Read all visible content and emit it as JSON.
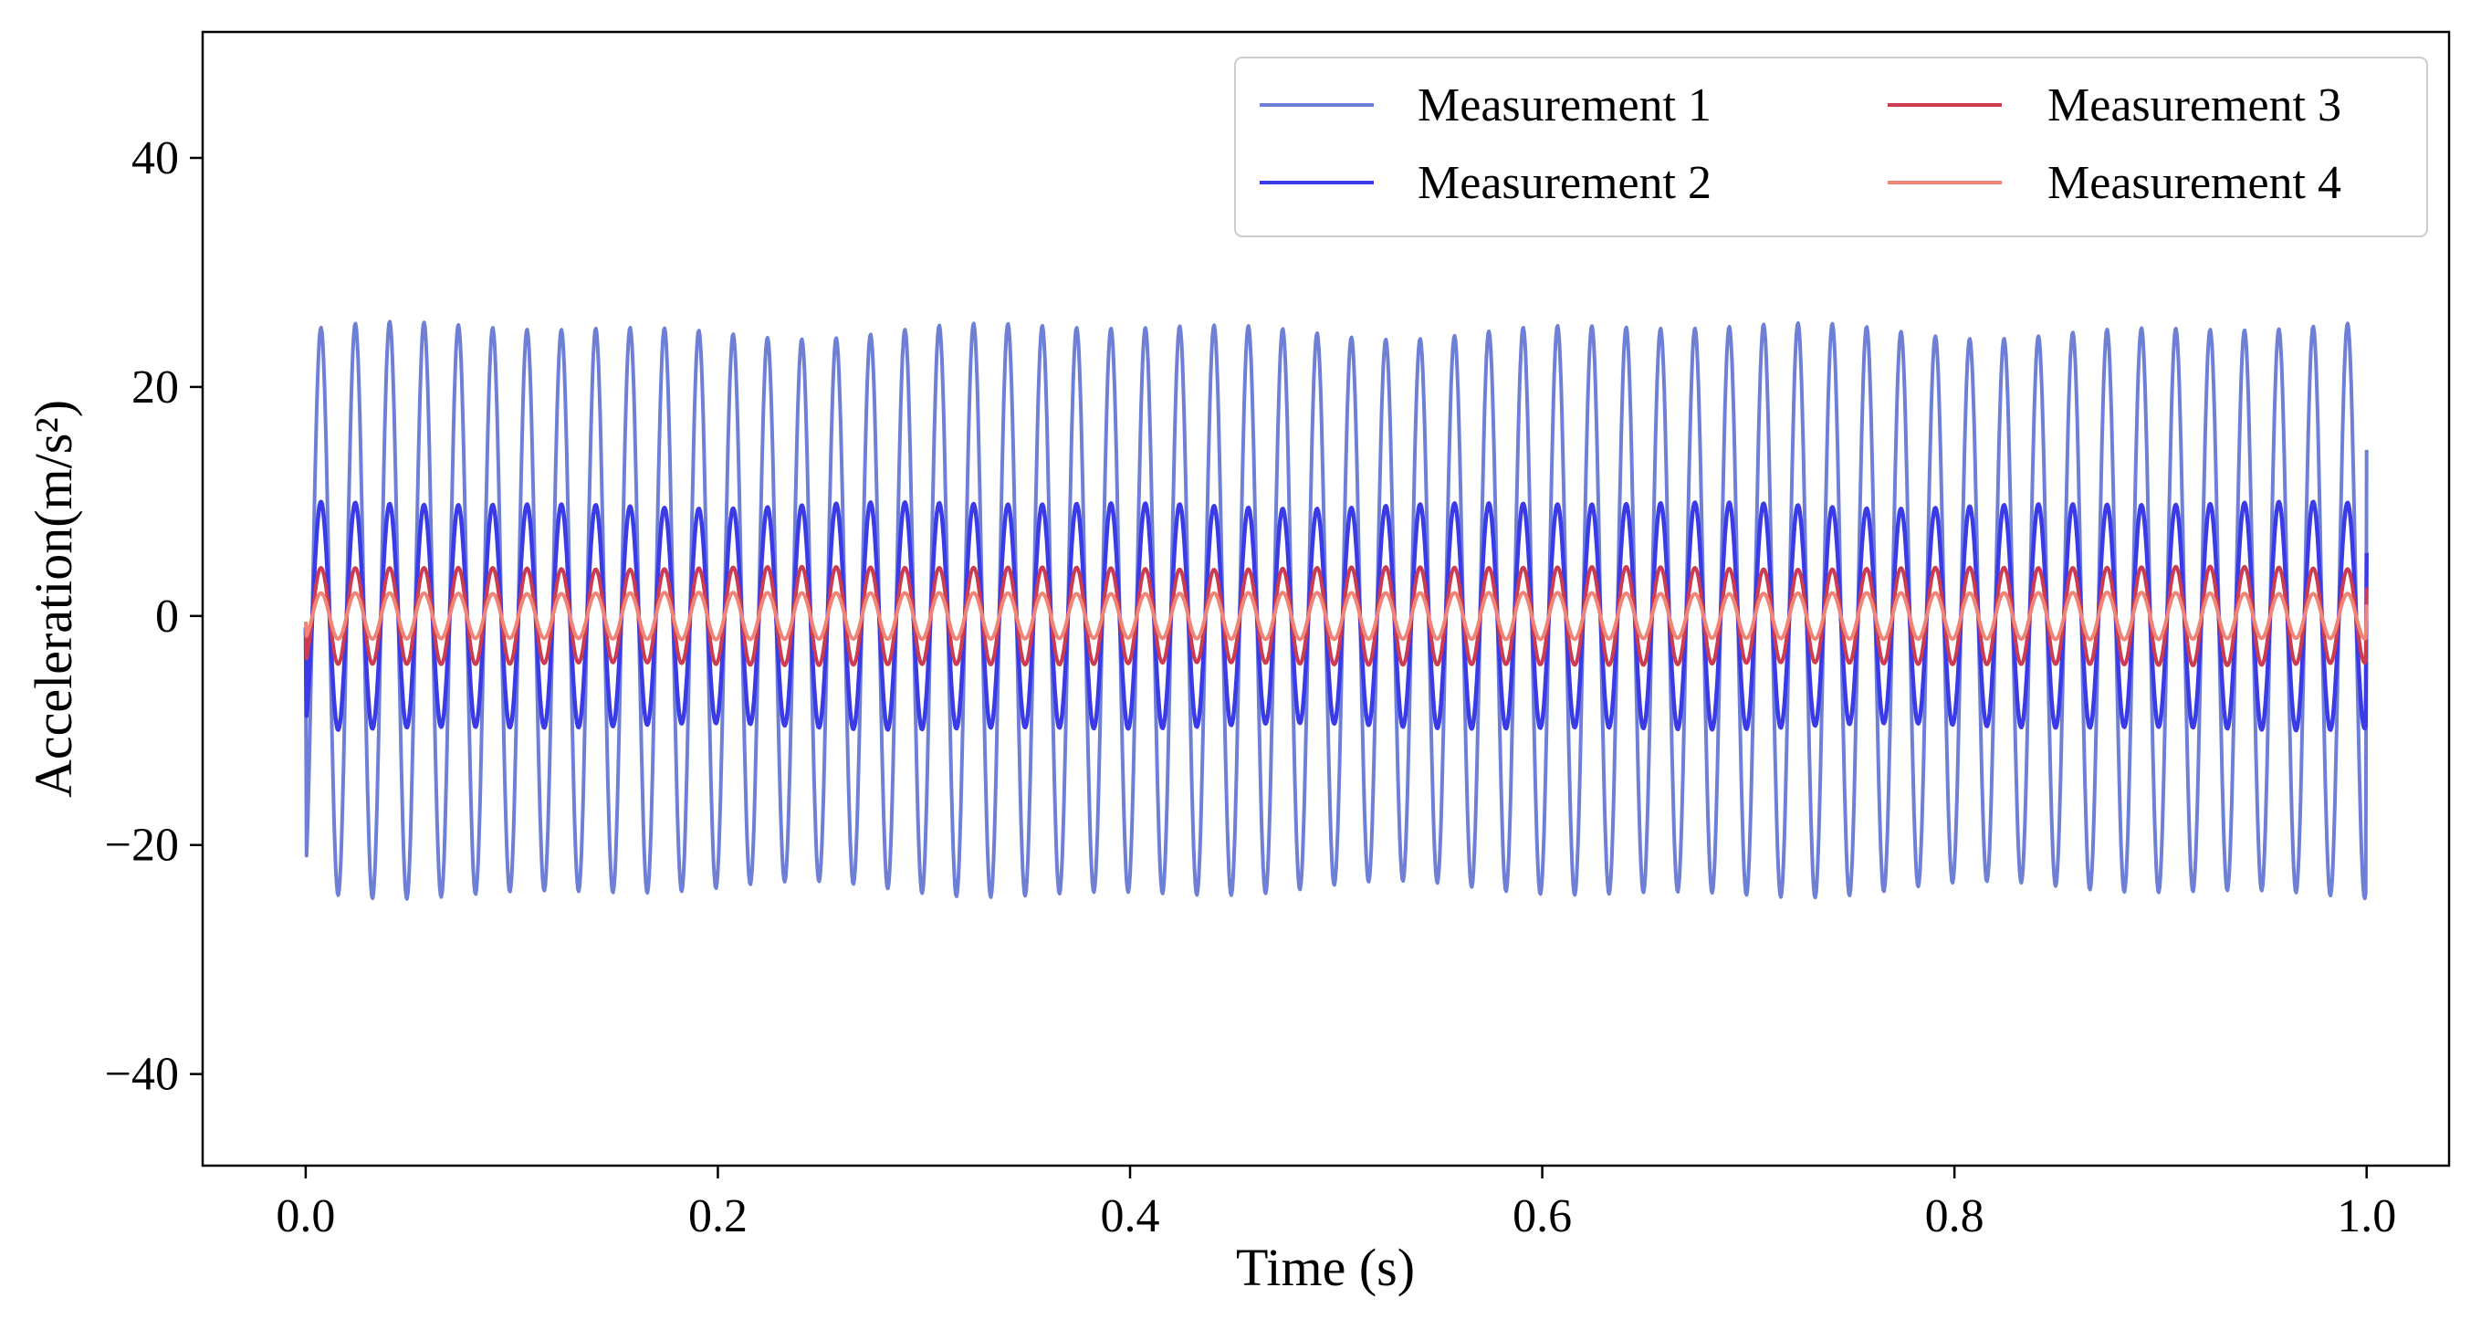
{
  "chart_data": {
    "type": "line",
    "title": "",
    "xlabel": "Time (s)",
    "ylabel": "Acceleration(m/s²)",
    "xlim": [
      -0.05,
      1.04
    ],
    "ylim": [
      -48,
      51
    ],
    "xticks": [
      0.0,
      0.2,
      0.4,
      0.6,
      0.8,
      1.0
    ],
    "xtick_labels": [
      "0.0",
      "0.2",
      "0.4",
      "0.6",
      "0.8",
      "1.0"
    ],
    "yticks": [
      -40,
      -20,
      0,
      20,
      40
    ],
    "ytick_labels": [
      "−40",
      "−20",
      "0",
      "20",
      "40"
    ],
    "grid": false,
    "legend_position": "top-right",
    "legend_columns": 2,
    "sampling": {
      "t_start": 0.0,
      "t_end": 1.0,
      "frequency_hz": 60
    },
    "series": [
      {
        "name": "Measurement 1",
        "color": "#6e7fd6",
        "amplitude": 24.5,
        "offset": 0.5,
        "start_value": -3,
        "end_value": 14.5
      },
      {
        "name": "Measurement 2",
        "color": "#3a3ae6",
        "amplitude": 9.7,
        "offset": 0,
        "start_value": -1,
        "end_value": 5.5
      },
      {
        "name": "Measurement 3",
        "color": "#cc3b4f",
        "amplitude": 4.2,
        "offset": 0,
        "start_value": -1,
        "end_value": 2.5
      },
      {
        "name": "Measurement 4",
        "color": "#f08476",
        "amplitude": 2.0,
        "offset": 0,
        "start_value": -0.5,
        "end_value": 1
      }
    ]
  }
}
